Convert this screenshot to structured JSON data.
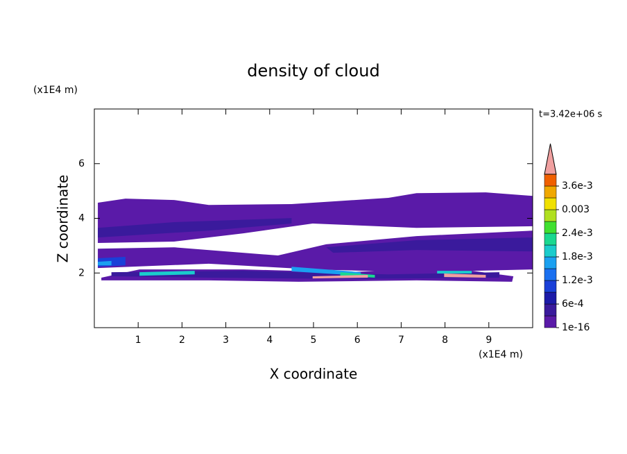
{
  "chart_data": {
    "type": "contour",
    "title": "density of cloud",
    "xlabel": "X coordinate",
    "ylabel": "Z coordinate",
    "xunit": "(x1E4 m)",
    "yunit": "(x1E4 m)",
    "annotation": "t=3.42e+06 s",
    "xlim": [
      0,
      10
    ],
    "ylim": [
      0,
      8
    ],
    "xticks": [
      1,
      2,
      3,
      4,
      5,
      6,
      7,
      8,
      9
    ],
    "yticks": [
      2,
      4,
      6
    ],
    "colorbar": {
      "levels": [
        1e-16,
        0.0003,
        0.0006,
        0.0009,
        0.0012,
        0.0015,
        0.0018,
        0.0021,
        0.0024,
        0.0027,
        0.003,
        0.0033,
        0.0036,
        0.0039
      ],
      "colors": [
        "#5a1aa8",
        "#3a1a9c",
        "#1c1aa8",
        "#1a40d8",
        "#1a70f0",
        "#1aa0f0",
        "#1acccc",
        "#1ad890",
        "#40e030",
        "#b0e020",
        "#f0e000",
        "#f0a800",
        "#f06000"
      ],
      "extend_color": "#f0a0a0",
      "ticks": [
        1e-16,
        {
          "value": 0.0006,
          "label": "6e-4"
        },
        {
          "value": 0.0012,
          "label": "1.2e-3"
        },
        {
          "value": 0.0018,
          "label": "1.8e-3"
        },
        {
          "value": 0.0024,
          "label": "2.4e-3"
        },
        0.003,
        {
          "value": 0.0036,
          "label": "3.6e-3"
        }
      ]
    },
    "regions": [
      {
        "value": 1e-16,
        "x": [
          0.08,
          0.71,
          1.82,
          2.61,
          4.5,
          5.45,
          6.71,
          7.35,
          8.93,
          10.0,
          10.0,
          7.35,
          4.98,
          3.4,
          1.82,
          0.08
        ],
        "z": [
          4.57,
          4.72,
          4.67,
          4.49,
          4.52,
          4.62,
          4.75,
          4.92,
          4.95,
          4.82,
          3.71,
          3.65,
          3.81,
          3.45,
          3.15,
          3.1
        ]
      },
      {
        "value": 1e-16,
        "x": [
          0.08,
          1.82,
          4.19,
          5.29,
          7.35,
          10.0,
          10.0,
          7.35,
          4.98,
          2.61,
          0.08
        ],
        "z": [
          2.89,
          2.94,
          2.64,
          3.05,
          3.35,
          3.55,
          2.13,
          2.03,
          2.13,
          2.34,
          2.18
        ]
      },
      {
        "value": 1e-16,
        "x": [
          0.16,
          1.03,
          3.4,
          5.77,
          8.14,
          9.56,
          9.53,
          7.35,
          4.66,
          2.61,
          0.16
        ],
        "z": [
          1.83,
          2.13,
          2.13,
          2.03,
          2.18,
          1.88,
          1.68,
          1.73,
          1.68,
          1.73,
          1.73
        ]
      },
      {
        "value": 0.0003,
        "x": [
          0.08,
          1.82,
          4.5,
          4.5,
          2.61,
          0.08
        ],
        "z": [
          3.65,
          3.86,
          4.01,
          3.81,
          3.55,
          3.3
        ]
      },
      {
        "value": 0.0003,
        "x": [
          5.29,
          7.35,
          10.0,
          10.0,
          7.35,
          5.45
        ],
        "z": [
          2.94,
          3.2,
          3.3,
          2.79,
          2.84,
          2.74
        ]
      },
      {
        "value": 0.0003,
        "x": [
          0.39,
          3.4,
          6.71,
          9.24,
          9.24,
          5.77,
          2.61,
          0.39
        ],
        "z": [
          2.03,
          2.08,
          1.95,
          2.03,
          1.83,
          1.78,
          1.83,
          1.88
        ]
      },
      {
        "value": 0.0009,
        "x": [
          0.08,
          0.71,
          0.71,
          0.08
        ],
        "z": [
          2.54,
          2.59,
          2.28,
          2.23
        ]
      },
      {
        "value": 0.0015,
        "x": [
          0.08,
          0.39,
          0.39,
          0.08
        ],
        "z": [
          2.41,
          2.44,
          2.28,
          2.28
        ]
      },
      {
        "value": 0.0015,
        "x": [
          4.5,
          6.08,
          6.08,
          4.5
        ],
        "z": [
          2.23,
          2.03,
          1.9,
          2.06
        ]
      },
      {
        "value": 0.0018,
        "x": [
          1.03,
          2.29,
          2.29,
          1.03
        ],
        "z": [
          2.03,
          2.08,
          1.95,
          1.9
        ]
      },
      {
        "value": 0.0018,
        "x": [
          7.82,
          8.61,
          8.61,
          7.82
        ],
        "z": [
          2.08,
          2.08,
          1.98,
          1.98
        ]
      },
      {
        "value": 0.0021,
        "x": [
          5.61,
          6.4,
          6.4,
          5.61
        ],
        "z": [
          2.03,
          1.93,
          1.83,
          1.9
        ]
      },
      {
        "value": 0.0039,
        "x": [
          4.98,
          6.24,
          6.24,
          4.98
        ],
        "z": [
          1.88,
          1.93,
          1.83,
          1.8
        ]
      },
      {
        "value": 0.0039,
        "x": [
          7.98,
          8.93,
          8.93,
          7.98
        ],
        "z": [
          1.98,
          1.93,
          1.83,
          1.85
        ]
      }
    ]
  }
}
